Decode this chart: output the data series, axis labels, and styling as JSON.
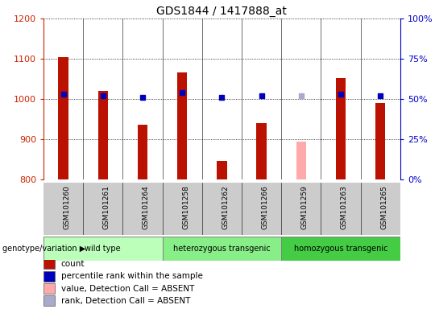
{
  "title": "GDS1844 / 1417888_at",
  "samples": [
    "GSM101260",
    "GSM101261",
    "GSM101264",
    "GSM101258",
    "GSM101262",
    "GSM101266",
    "GSM101259",
    "GSM101263",
    "GSM101265"
  ],
  "count_values": [
    1103,
    1020,
    935,
    1065,
    845,
    940,
    null,
    1052,
    990
  ],
  "count_absent_values": [
    null,
    null,
    null,
    null,
    null,
    null,
    893,
    null,
    null
  ],
  "rank_values": [
    53,
    52,
    51,
    54,
    51,
    52,
    null,
    53,
    52
  ],
  "rank_absent_values": [
    null,
    null,
    null,
    null,
    null,
    null,
    52,
    null,
    null
  ],
  "ylim_left": [
    800,
    1200
  ],
  "ylim_right": [
    0,
    100
  ],
  "yticks_left": [
    800,
    900,
    1000,
    1100,
    1200
  ],
  "yticks_right": [
    0,
    25,
    50,
    75,
    100
  ],
  "groups": [
    {
      "label": "wild type",
      "indices": [
        0,
        1,
        2
      ],
      "color": "#bbffbb"
    },
    {
      "label": "heterozygous transgenic",
      "indices": [
        3,
        4,
        5
      ],
      "color": "#88ee88"
    },
    {
      "label": "homozygous transgenic",
      "indices": [
        6,
        7,
        8
      ],
      "color": "#44cc44"
    }
  ],
  "bar_width": 0.25,
  "count_color": "#bb1100",
  "count_absent_color": "#ffaaaa",
  "rank_color": "#0000bb",
  "rank_absent_color": "#aaaacc",
  "left_axis_color": "#cc2200",
  "right_axis_color": "#0000cc",
  "xtick_bg": "#cccccc",
  "group_label_prefix": "genotype/variation",
  "legend_items": [
    {
      "label": "count",
      "color": "#bb1100"
    },
    {
      "label": "percentile rank within the sample",
      "color": "#0000bb"
    },
    {
      "label": "value, Detection Call = ABSENT",
      "color": "#ffaaaa"
    },
    {
      "label": "rank, Detection Call = ABSENT",
      "color": "#aaaacc"
    }
  ]
}
